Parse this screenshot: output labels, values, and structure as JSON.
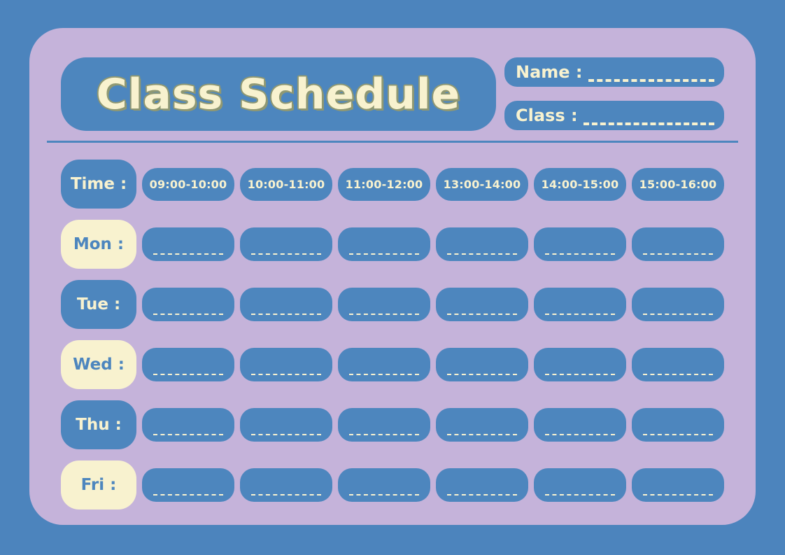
{
  "title": "Class Schedule",
  "fields": {
    "name_label": "Name :",
    "class_label": "Class :"
  },
  "schedule": {
    "time_label": "Time :",
    "time_slots": [
      "09:00-10:00",
      "10:00-11:00",
      "11:00-12:00",
      "13:00-14:00",
      "14:00-15:00",
      "15:00-16:00"
    ],
    "days": [
      {
        "label": "Mon :"
      },
      {
        "label": "Tue :"
      },
      {
        "label": "Wed :"
      },
      {
        "label": "Thu :"
      },
      {
        "label": "Fri :"
      }
    ]
  },
  "colors": {
    "background_blue": "#4C84BD",
    "card_purple": "#C5B3DA",
    "box_blue": "#4D86BE",
    "cream": "#F8F2CF",
    "title_outline": "#8F9873"
  }
}
